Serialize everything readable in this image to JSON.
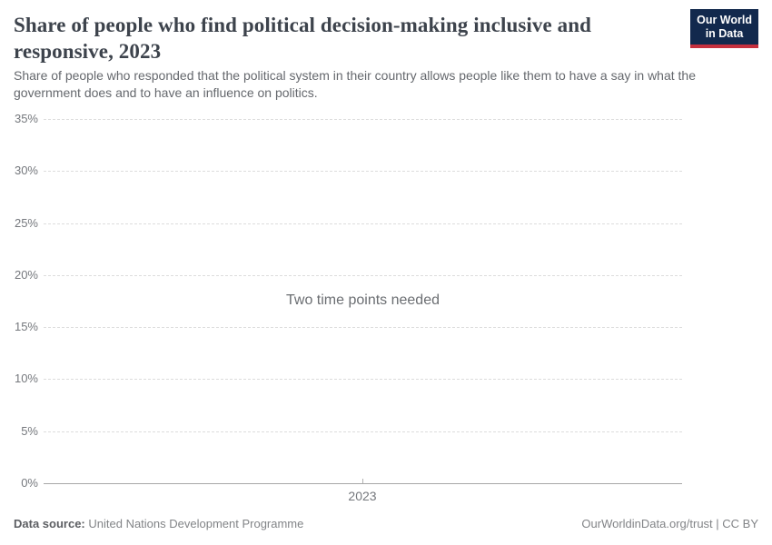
{
  "header": {
    "title": "Share of people who find political decision-making inclusive and responsive, 2023",
    "subtitle": "Share of people who responded that the political system in their country allows people like them to have a say in what the government does and to have an influence on politics.",
    "logo": {
      "line1": "Our World",
      "line2": "in Data"
    }
  },
  "chart_data": {
    "type": "line",
    "title": "Share of people who find political decision-making inclusive and responsive, 2023",
    "series": [],
    "empty_message": "Two time points needed",
    "x_tick_label": "2023",
    "x_ticks": [
      "2023"
    ],
    "y_ticks_ascending": [
      "0%",
      "5%",
      "10%",
      "15%",
      "20%",
      "25%",
      "30%",
      "35%"
    ],
    "ylim": [
      0,
      35
    ],
    "ylabel": "",
    "xlabel": "",
    "grid": true,
    "legend": "none"
  },
  "footer": {
    "source_label": "Data source:",
    "source_value": "United Nations Development Programme",
    "right_text": "OurWorldinData.org/trust | CC BY"
  },
  "colors": {
    "logo_navy": "#12294d",
    "logo_red": "#c5303e",
    "title_text": "#3d434c",
    "subtitle_text": "#65686d",
    "gridline": "#dcdcdc",
    "axis_line": "#a7a7a7",
    "tick_label": "#75787d",
    "empty_message_text": "#6b6e72",
    "footer_text": "#828487"
  }
}
